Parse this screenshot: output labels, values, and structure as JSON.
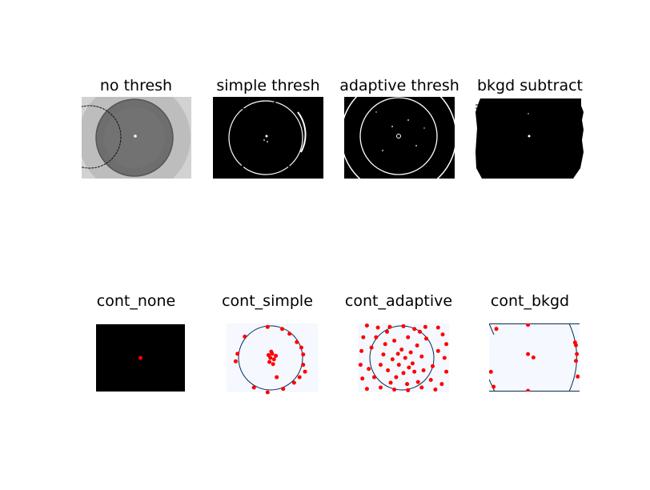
{
  "figure": {
    "row1_titles": [
      "no thresh",
      "simple thresh",
      "adaptive thresh",
      "bkgd subtract"
    ],
    "row2_titles": [
      "cont_none",
      "cont_simple",
      "cont_adaptive",
      "cont_bkgd"
    ]
  },
  "colors": {
    "dish_gray": "#6e6e6e",
    "light_gray": "#c8c8c8",
    "binary_bg": "#000000",
    "binary_fg": "#ffffff",
    "contour_bg": "#f5f8fe",
    "contour_line": "#0b2a55",
    "point": "#ff0000"
  },
  "chart_data": [
    {
      "type": "image",
      "title": "no thresh"
    },
    {
      "type": "image",
      "title": "simple thresh"
    },
    {
      "type": "image",
      "title": "adaptive thresh"
    },
    {
      "type": "image",
      "title": "bkgd subtract"
    },
    {
      "type": "scatter",
      "title": "cont_none",
      "points": [
        [
          0.5,
          0.5
        ]
      ]
    },
    {
      "type": "scatter",
      "title": "cont_simple",
      "points": [
        [
          0.12,
          0.44
        ],
        [
          0.1,
          0.55
        ],
        [
          0.3,
          0.93
        ],
        [
          0.45,
          1.0
        ],
        [
          0.62,
          0.95
        ],
        [
          0.74,
          0.86
        ],
        [
          0.8,
          0.78
        ],
        [
          0.86,
          0.7
        ],
        [
          0.82,
          0.35
        ],
        [
          0.84,
          0.6
        ],
        [
          0.77,
          0.27
        ],
        [
          0.69,
          0.15
        ],
        [
          0.61,
          0.08
        ],
        [
          0.45,
          0.05
        ],
        [
          0.2,
          0.19
        ],
        [
          0.46,
          0.46
        ],
        [
          0.48,
          0.5
        ],
        [
          0.5,
          0.44
        ],
        [
          0.52,
          0.52
        ],
        [
          0.47,
          0.56
        ],
        [
          0.51,
          0.59
        ],
        [
          0.49,
          0.41
        ],
        [
          0.54,
          0.47
        ],
        [
          0.55,
          0.78
        ],
        [
          0.84,
          0.45
        ]
      ]
    },
    {
      "type": "scatter",
      "title": "cont_adaptive",
      "points": [
        [
          0.1,
          0.03
        ],
        [
          0.22,
          0.06
        ],
        [
          0.35,
          0.05
        ],
        [
          0.5,
          0.04
        ],
        [
          0.62,
          0.08
        ],
        [
          0.74,
          0.05
        ],
        [
          0.88,
          0.06
        ],
        [
          0.93,
          0.16
        ],
        [
          0.97,
          0.3
        ],
        [
          0.95,
          0.5
        ],
        [
          0.97,
          0.7
        ],
        [
          0.92,
          0.88
        ],
        [
          0.85,
          0.96
        ],
        [
          0.7,
          0.93
        ],
        [
          0.55,
          0.97
        ],
        [
          0.4,
          0.96
        ],
        [
          0.25,
          0.93
        ],
        [
          0.1,
          0.95
        ],
        [
          0.05,
          0.8
        ],
        [
          0.03,
          0.6
        ],
        [
          0.04,
          0.4
        ],
        [
          0.06,
          0.2
        ],
        [
          0.2,
          0.2
        ],
        [
          0.3,
          0.3
        ],
        [
          0.4,
          0.25
        ],
        [
          0.55,
          0.2
        ],
        [
          0.65,
          0.32
        ],
        [
          0.75,
          0.22
        ],
        [
          0.28,
          0.45
        ],
        [
          0.38,
          0.52
        ],
        [
          0.45,
          0.6
        ],
        [
          0.52,
          0.5
        ],
        [
          0.6,
          0.58
        ],
        [
          0.7,
          0.48
        ],
        [
          0.33,
          0.68
        ],
        [
          0.42,
          0.78
        ],
        [
          0.5,
          0.72
        ],
        [
          0.62,
          0.7
        ],
        [
          0.72,
          0.68
        ],
        [
          0.25,
          0.6
        ],
        [
          0.48,
          0.38
        ],
        [
          0.58,
          0.42
        ],
        [
          0.66,
          0.85
        ],
        [
          0.18,
          0.78
        ],
        [
          0.82,
          0.62
        ],
        [
          0.15,
          0.35
        ],
        [
          0.88,
          0.4
        ],
        [
          0.36,
          0.86
        ],
        [
          0.54,
          0.88
        ],
        [
          0.44,
          0.44
        ],
        [
          0.56,
          0.64
        ],
        [
          0.32,
          0.12
        ],
        [
          0.8,
          0.82
        ],
        [
          0.12,
          0.66
        ],
        [
          0.68,
          0.12
        ]
      ]
    },
    {
      "type": "scatter",
      "title": "cont_bkgd",
      "points": [
        [
          0.08,
          0.08
        ],
        [
          0.43,
          0.02
        ],
        [
          0.43,
          0.45
        ],
        [
          0.49,
          0.5
        ],
        [
          0.95,
          0.28
        ],
        [
          0.97,
          0.45
        ],
        [
          0.96,
          0.55
        ],
        [
          0.98,
          0.78
        ],
        [
          0.02,
          0.71
        ],
        [
          0.05,
          0.93
        ],
        [
          0.43,
          0.99
        ],
        [
          0.96,
          0.32
        ]
      ]
    }
  ]
}
